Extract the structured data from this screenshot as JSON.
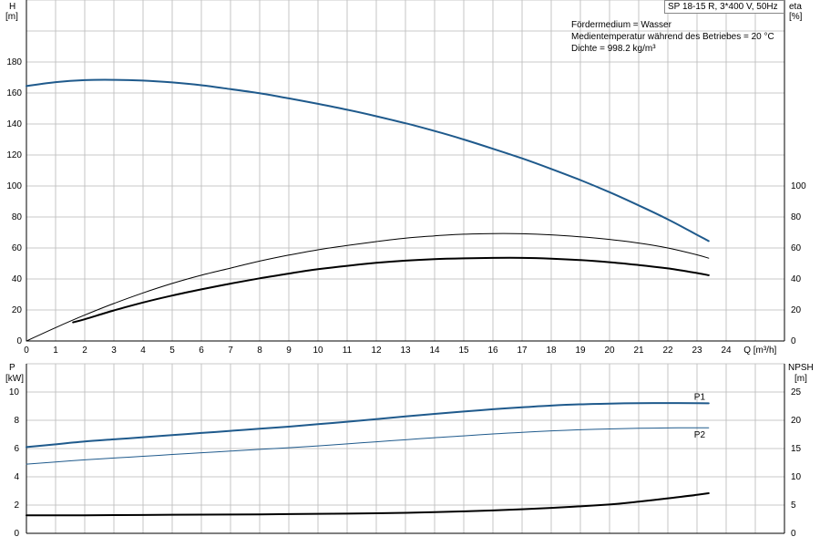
{
  "header": {
    "pump_label": "SP 18-15 R, 3*400 V, 50Hz",
    "info": [
      "Fördermedium = Wasser",
      "Medientemperatur während des Betriebes = 20 °C",
      "Dichte = 998.2 kg/m³"
    ]
  },
  "colors": {
    "blue": "#1f5a8c",
    "black": "#000000",
    "grid": "#b8b8b8"
  },
  "chart_data": [
    {
      "type": "line",
      "panel": "top",
      "xlabel": "Q [m³/h]",
      "ylabel_left": {
        "name": "H",
        "unit": "[m]"
      },
      "ylabel_right": {
        "name": "eta",
        "unit": "[%]"
      },
      "xlim": [
        0,
        26
      ],
      "ylim_left": [
        0,
        200
      ],
      "ylim_right": [
        0,
        100
      ],
      "x_ticks": [
        0,
        1,
        2,
        3,
        4,
        5,
        6,
        7,
        8,
        9,
        10,
        11,
        12,
        13,
        14,
        15,
        16,
        17,
        18,
        19,
        20,
        21,
        22,
        23,
        24
      ],
      "y_left_ticks": [
        0,
        20,
        40,
        60,
        80,
        100,
        120,
        140,
        160,
        180
      ],
      "y_right_ticks": [
        0,
        20,
        40,
        60,
        80,
        100
      ],
      "grid": true,
      "series": [
        {
          "id": "H",
          "axis": "left",
          "color": "blue",
          "width": 2,
          "points": [
            [
              0,
              164.5
            ],
            [
              1,
              167
            ],
            [
              2,
              168.3
            ],
            [
              3,
              168.5
            ],
            [
              4,
              168
            ],
            [
              5,
              166.8
            ],
            [
              6,
              165
            ],
            [
              7,
              162.5
            ],
            [
              8,
              159.8
            ],
            [
              9,
              156.5
            ],
            [
              10,
              153
            ],
            [
              11,
              149.2
            ],
            [
              12,
              145
            ],
            [
              13,
              140.5
            ],
            [
              14,
              135.5
            ],
            [
              15,
              130
            ],
            [
              16,
              124
            ],
            [
              17,
              117.8
            ],
            [
              18,
              111
            ],
            [
              19,
              103.8
            ],
            [
              20,
              96
            ],
            [
              21,
              87.5
            ],
            [
              22,
              78.5
            ],
            [
              23,
              68.5
            ],
            [
              23.4,
              64.5
            ]
          ]
        },
        {
          "id": "eta_pump",
          "axis": "left",
          "color": "black",
          "width": 1,
          "points": [
            [
              0,
              0
            ],
            [
              1,
              8.6
            ],
            [
              2,
              16.7
            ],
            [
              3,
              24.2
            ],
            [
              4,
              31
            ],
            [
              5,
              37.1
            ],
            [
              6,
              42.4
            ],
            [
              7,
              47
            ],
            [
              8,
              51.5
            ],
            [
              9,
              55.4
            ],
            [
              10,
              58.8
            ],
            [
              11,
              61.6
            ],
            [
              12,
              64.1
            ],
            [
              13,
              66.3
            ],
            [
              14,
              67.8
            ],
            [
              15,
              68.9
            ],
            [
              16,
              69.3
            ],
            [
              17,
              69.2
            ],
            [
              18,
              68.5
            ],
            [
              19,
              67.2
            ],
            [
              20,
              65.5
            ],
            [
              21,
              63.2
            ],
            [
              22,
              60
            ],
            [
              23,
              55.6
            ],
            [
              23.4,
              53.4
            ]
          ]
        },
        {
          "id": "eta_total",
          "axis": "left",
          "color": "black",
          "width": 2,
          "points": [
            [
              1.6,
              12
            ],
            [
              2,
              14
            ],
            [
              3,
              19.7
            ],
            [
              4,
              24.8
            ],
            [
              5,
              29.3
            ],
            [
              6,
              33.3
            ],
            [
              7,
              37
            ],
            [
              8,
              40.4
            ],
            [
              9,
              43.5
            ],
            [
              10,
              46.3
            ],
            [
              11,
              48.5
            ],
            [
              12,
              50.4
            ],
            [
              13,
              51.8
            ],
            [
              14,
              52.8
            ],
            [
              15,
              53.3
            ],
            [
              16,
              53.6
            ],
            [
              17,
              53.6
            ],
            [
              18,
              53.1
            ],
            [
              19,
              52.2
            ],
            [
              20,
              50.8
            ],
            [
              21,
              49
            ],
            [
              22,
              46.8
            ],
            [
              23,
              43.8
            ],
            [
              23.4,
              42.4
            ]
          ]
        }
      ]
    },
    {
      "type": "line",
      "panel": "bottom",
      "ylabel_left": {
        "name": "P",
        "unit": "[kW]"
      },
      "ylabel_right": {
        "name": "NPSH",
        "unit": "[m]"
      },
      "xlim": [
        0,
        26
      ],
      "ylim_left": [
        0,
        12
      ],
      "ylim_right": [
        0,
        30
      ],
      "y_left_ticks": [
        0,
        2,
        4,
        6,
        8,
        10
      ],
      "y_right_ticks": [
        0,
        5,
        10,
        15,
        20,
        25
      ],
      "grid": true,
      "series": [
        {
          "id": "P1",
          "name": "P1",
          "axis": "left",
          "color": "blue",
          "width": 2,
          "points": [
            [
              0,
              6.1
            ],
            [
              1,
              6.3
            ],
            [
              2,
              6.5
            ],
            [
              3,
              6.65
            ],
            [
              4,
              6.8
            ],
            [
              5,
              6.95
            ],
            [
              6,
              7.1
            ],
            [
              7,
              7.25
            ],
            [
              8,
              7.4
            ],
            [
              9,
              7.55
            ],
            [
              10,
              7.72
            ],
            [
              11,
              7.9
            ],
            [
              12,
              8.08
            ],
            [
              13,
              8.27
            ],
            [
              14,
              8.45
            ],
            [
              15,
              8.62
            ],
            [
              16,
              8.78
            ],
            [
              17,
              8.92
            ],
            [
              18,
              9.04
            ],
            [
              19,
              9.13
            ],
            [
              20,
              9.18
            ],
            [
              21,
              9.21
            ],
            [
              22,
              9.22
            ],
            [
              23,
              9.21
            ],
            [
              23.4,
              9.2
            ]
          ]
        },
        {
          "id": "P2",
          "name": "P2",
          "axis": "left",
          "color": "blue",
          "width": 1,
          "points": [
            [
              0,
              4.9
            ],
            [
              1,
              5.05
            ],
            [
              2,
              5.2
            ],
            [
              3,
              5.33
            ],
            [
              4,
              5.45
            ],
            [
              5,
              5.58
            ],
            [
              6,
              5.7
            ],
            [
              7,
              5.82
            ],
            [
              8,
              5.94
            ],
            [
              9,
              6.06
            ],
            [
              10,
              6.19
            ],
            [
              11,
              6.33
            ],
            [
              12,
              6.48
            ],
            [
              13,
              6.62
            ],
            [
              14,
              6.77
            ],
            [
              15,
              6.9
            ],
            [
              16,
              7.03
            ],
            [
              17,
              7.15
            ],
            [
              18,
              7.25
            ],
            [
              19,
              7.33
            ],
            [
              20,
              7.39
            ],
            [
              21,
              7.43
            ],
            [
              22,
              7.46
            ],
            [
              23,
              7.47
            ],
            [
              23.4,
              7.47
            ]
          ]
        },
        {
          "id": "NPSH",
          "axis": "right",
          "color": "black",
          "width": 2,
          "points": [
            [
              0,
              3.2
            ],
            [
              2,
              3.2
            ],
            [
              4,
              3.25
            ],
            [
              6,
              3.3
            ],
            [
              8,
              3.35
            ],
            [
              10,
              3.45
            ],
            [
              12,
              3.55
            ],
            [
              14,
              3.75
            ],
            [
              16,
              4.05
            ],
            [
              18,
              4.5
            ],
            [
              20,
              5.1
            ],
            [
              21,
              5.6
            ],
            [
              22,
              6.2
            ],
            [
              23,
              6.8
            ],
            [
              23.4,
              7.1
            ]
          ]
        }
      ]
    }
  ]
}
